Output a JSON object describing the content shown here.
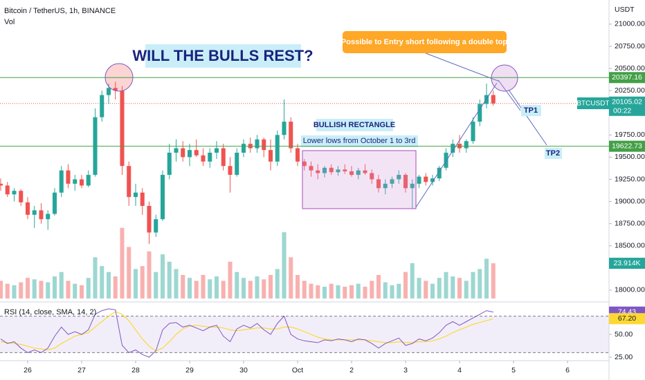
{
  "chart_data": {
    "type": "candlestick",
    "title": "Bitcoin / TetherUS, 1h, BINANCE",
    "volume_label": "Vol",
    "currency": "USDT",
    "symbol": "BTCUSDT",
    "countdown": "00:22",
    "up_color": "#26a69a",
    "down_color": "#ef5350",
    "ohlc": [
      [
        19200,
        19260,
        19120,
        19180
      ],
      [
        19180,
        19220,
        19050,
        19080
      ],
      [
        19080,
        19150,
        19000,
        19120
      ],
      [
        19120,
        19140,
        18950,
        18990
      ],
      [
        18990,
        19050,
        18800,
        18850
      ],
      [
        18850,
        18950,
        18700,
        18900
      ],
      [
        18900,
        18980,
        18750,
        18800
      ],
      [
        18800,
        18900,
        18680,
        18860
      ],
      [
        18860,
        19150,
        18840,
        19100
      ],
      [
        19100,
        19400,
        19050,
        19350
      ],
      [
        19350,
        19420,
        19150,
        19200
      ],
      [
        19200,
        19300,
        19120,
        19250
      ],
      [
        19250,
        19300,
        19150,
        19180
      ],
      [
        19180,
        19350,
        19160,
        19300
      ],
      [
        19300,
        20050,
        19280,
        19950
      ],
      [
        19950,
        20250,
        19900,
        20200
      ],
      [
        20200,
        20330,
        20100,
        20280
      ],
      [
        20280,
        20350,
        20150,
        20250
      ],
      [
        20250,
        20300,
        19300,
        19400
      ],
      [
        19400,
        19450,
        18950,
        19050
      ],
      [
        19050,
        19200,
        18950,
        19100
      ],
      [
        19100,
        19150,
        18850,
        18950
      ],
      [
        18950,
        19000,
        18520,
        18650
      ],
      [
        18650,
        18850,
        18600,
        18800
      ],
      [
        18800,
        19350,
        18780,
        19300
      ],
      [
        19300,
        19650,
        19250,
        19550
      ],
      [
        19550,
        19700,
        19450,
        19600
      ],
      [
        19600,
        19680,
        19450,
        19500
      ],
      [
        19500,
        19650,
        19400,
        19580
      ],
      [
        19580,
        19700,
        19500,
        19520
      ],
      [
        19520,
        19600,
        19400,
        19450
      ],
      [
        19450,
        19600,
        19380,
        19550
      ],
      [
        19550,
        19680,
        19480,
        19600
      ],
      [
        19600,
        19650,
        19350,
        19400
      ],
      [
        19400,
        19500,
        19100,
        19300
      ],
      [
        19300,
        19600,
        19280,
        19550
      ],
      [
        19550,
        19700,
        19500,
        19650
      ],
      [
        19650,
        19720,
        19550,
        19600
      ],
      [
        19600,
        19750,
        19550,
        19700
      ],
      [
        19700,
        19720,
        19500,
        19580
      ],
      [
        19580,
        19700,
        19350,
        19450
      ],
      [
        19450,
        19800,
        19400,
        19750
      ],
      [
        19750,
        20150,
        19700,
        19900
      ],
      [
        19900,
        19950,
        19550,
        19600
      ],
      [
        19600,
        19650,
        19400,
        19450
      ],
      [
        19450,
        19480,
        19350,
        19400
      ],
      [
        19400,
        19450,
        19280,
        19350
      ],
      [
        19350,
        19420,
        19250,
        19320
      ],
      [
        19320,
        19400,
        19270,
        19380
      ],
      [
        19380,
        19420,
        19300,
        19330
      ],
      [
        19330,
        19400,
        19290,
        19360
      ],
      [
        19360,
        19420,
        19310,
        19340
      ],
      [
        19340,
        19400,
        19280,
        19300
      ],
      [
        19300,
        19380,
        19250,
        19350
      ],
      [
        19350,
        19420,
        19300,
        19320
      ],
      [
        19320,
        19360,
        19200,
        19250
      ],
      [
        19250,
        19300,
        19100,
        19150
      ],
      [
        19150,
        19250,
        19080,
        19200
      ],
      [
        19200,
        19280,
        19150,
        19250
      ],
      [
        19250,
        19350,
        19200,
        19300
      ],
      [
        19300,
        19320,
        19100,
        19150
      ],
      [
        19150,
        19250,
        18920,
        19200
      ],
      [
        19200,
        19300,
        19150,
        19280
      ],
      [
        19280,
        19320,
        19180,
        19220
      ],
      [
        19220,
        19300,
        19180,
        19260
      ],
      [
        19260,
        19400,
        19230,
        19380
      ],
      [
        19380,
        19600,
        19350,
        19550
      ],
      [
        19550,
        19700,
        19500,
        19650
      ],
      [
        19650,
        19750,
        19550,
        19600
      ],
      [
        19600,
        19700,
        19550,
        19680
      ],
      [
        19680,
        19950,
        19650,
        19900
      ],
      [
        19900,
        20150,
        19850,
        20100
      ],
      [
        20100,
        20330,
        20050,
        20200
      ],
      [
        20200,
        20250,
        20080,
        20105
      ]
    ],
    "volume": [
      12,
      10,
      9,
      11,
      14,
      13,
      12,
      11,
      15,
      18,
      12,
      10,
      9,
      14,
      28,
      22,
      18,
      15,
      48,
      35,
      20,
      22,
      32,
      18,
      30,
      25,
      20,
      16,
      14,
      12,
      16,
      13,
      15,
      12,
      25,
      18,
      14,
      12,
      15,
      13,
      16,
      20,
      45,
      28,
      16,
      12,
      10,
      9,
      8,
      10,
      9,
      8,
      9,
      10,
      8,
      12,
      16,
      11,
      9,
      10,
      18,
      24,
      14,
      12,
      10,
      14,
      18,
      15,
      14,
      12,
      18,
      20,
      27,
      23.914
    ],
    "volume_last_label": "23.914K",
    "volume_lim": [
      0,
      200
    ],
    "xlim": [
      -0.1,
      90.15
    ],
    "xticks": [
      {
        "value": 4,
        "label": "26"
      },
      {
        "value": 12,
        "label": "27"
      },
      {
        "value": 20,
        "label": "28"
      },
      {
        "value": 28,
        "label": "29"
      },
      {
        "value": 36,
        "label": "30"
      },
      {
        "value": 44,
        "label": "Oct"
      },
      {
        "value": 52,
        "label": "2"
      },
      {
        "value": 60,
        "label": "3"
      },
      {
        "value": 68,
        "label": "4"
      },
      {
        "value": 76,
        "label": "5"
      },
      {
        "value": 84,
        "label": "6"
      }
    ],
    "ylim": [
      17867,
      21272
    ],
    "yticks": [
      {
        "value": 21000,
        "label": "21000.00"
      },
      {
        "value": 20750,
        "label": "20750.00"
      },
      {
        "value": 20500,
        "label": "20500.00"
      },
      {
        "value": 20250,
        "label": "20250.00"
      },
      {
        "value": 19750,
        "label": "19750.00"
      },
      {
        "value": 19500,
        "label": "19500.00"
      },
      {
        "value": 19250,
        "label": "19250.00"
      },
      {
        "value": 19000,
        "label": "19000.00"
      },
      {
        "value": 18750,
        "label": "18750.00"
      },
      {
        "value": 18500,
        "label": "18500.00"
      },
      {
        "value": 18000,
        "label": "18000.00"
      }
    ],
    "price_lines": [
      {
        "value": 20397.16,
        "color": "#43a047"
      },
      {
        "value": 19622.73,
        "color": "#43a047"
      }
    ],
    "last_price": 20105.02,
    "rsi": {
      "label": "RSI (14, close, SMA, 14, 2)",
      "color": "#7e57c2",
      "ma_color": "#fdd835",
      "values": [
        45,
        40,
        42,
        35,
        30,
        33,
        30,
        35,
        48,
        58,
        50,
        53,
        50,
        55,
        72,
        76,
        78,
        77,
        38,
        30,
        33,
        28,
        25,
        32,
        55,
        62,
        63,
        58,
        60,
        57,
        54,
        58,
        60,
        48,
        42,
        56,
        60,
        57,
        62,
        55,
        50,
        62,
        70,
        50,
        45,
        43,
        42,
        41,
        44,
        43,
        45,
        44,
        42,
        45,
        44,
        40,
        35,
        40,
        43,
        46,
        38,
        40,
        45,
        43,
        46,
        52,
        60,
        64,
        60,
        64,
        68,
        72,
        76,
        74.43
      ],
      "ma": [
        42,
        41,
        40,
        39,
        37,
        35,
        34,
        33,
        35,
        40,
        44,
        48,
        50,
        52,
        58,
        64,
        70,
        75,
        72,
        65,
        55,
        45,
        37,
        32,
        35,
        42,
        50,
        56,
        59,
        60,
        59,
        58,
        58,
        57,
        55,
        54,
        55,
        56,
        57,
        57,
        56,
        56,
        58,
        58,
        56,
        53,
        50,
        47,
        45,
        44,
        44,
        44,
        44,
        44,
        44,
        43,
        42,
        41,
        41,
        42,
        41,
        41,
        42,
        42,
        43,
        45,
        48,
        52,
        55,
        58,
        61,
        63,
        65,
        67.2
      ],
      "ma_last": {
        "value": 67.2,
        "label": "67.20"
      },
      "ylim": [
        15.2,
        84.8
      ],
      "bands": [
        70,
        30
      ],
      "yticks": [
        {
          "value": 50,
          "label": "50.00"
        },
        {
          "value": 25,
          "label": "25.00"
        }
      ]
    },
    "annotations": [
      "WILL THE BULLS REST?",
      "Possible to Entry short following a double top",
      "BULLISH RECTANGLE",
      "Lower lows from October 1 to 3rd",
      "TP1",
      "TP2"
    ]
  }
}
